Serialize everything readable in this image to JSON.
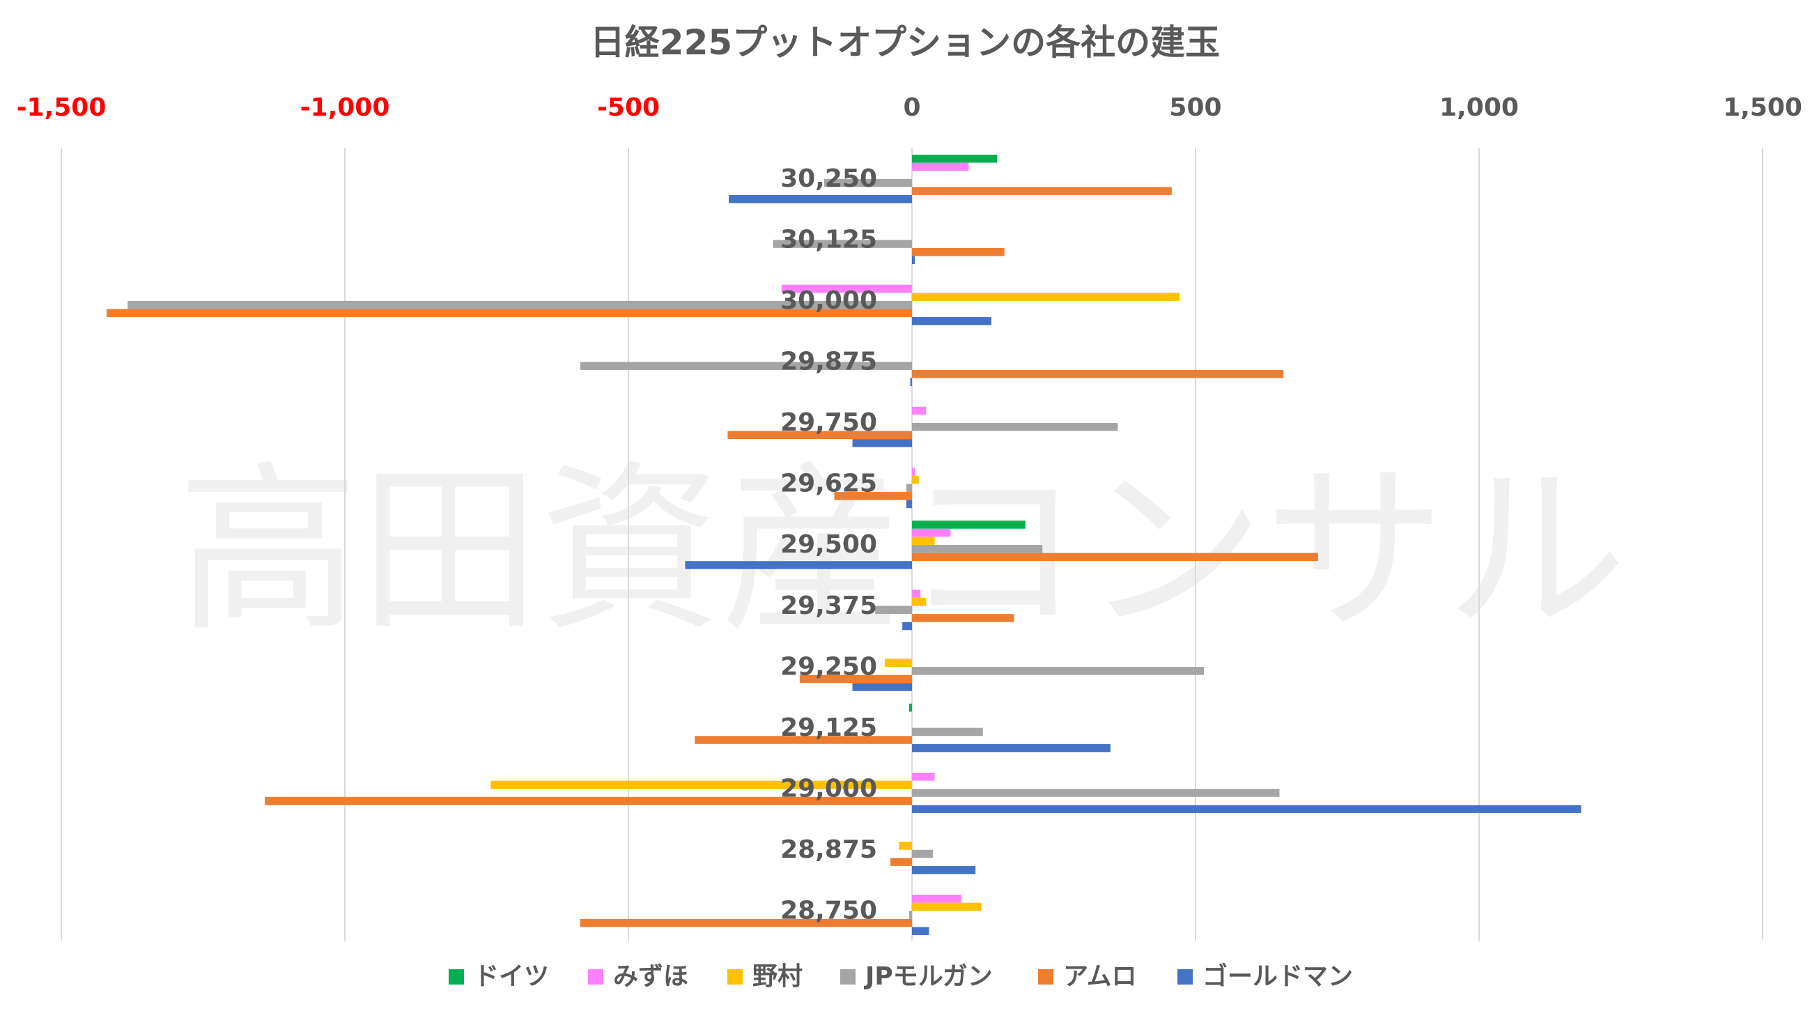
{
  "chart_data": {
    "type": "bar",
    "orientation": "horizontal",
    "title": "日経225プットオプションの各社の建玉",
    "watermark": "高田資産コンサル",
    "categories": [
      "30,250",
      "30,125",
      "30,000",
      "29,875",
      "29,750",
      "29,625",
      "29,500",
      "29,375",
      "29,250",
      "29,125",
      "29,000",
      "28,875",
      "28,750"
    ],
    "xlim": [
      -1500,
      1500
    ],
    "xticks": [
      {
        "value": -1500,
        "label": "-1,500",
        "negative": true
      },
      {
        "value": -1000,
        "label": "-1,000",
        "negative": true
      },
      {
        "value": -500,
        "label": "-500",
        "negative": true
      },
      {
        "value": 0,
        "label": "0",
        "negative": false
      },
      {
        "value": 500,
        "label": "500",
        "negative": false
      },
      {
        "value": 1000,
        "label": "1,000",
        "negative": false
      },
      {
        "value": 1500,
        "label": "1,500",
        "negative": false
      }
    ],
    "axis_position": "top",
    "grid": "vertical",
    "legend_position": "bottom",
    "negative_tick_color": "#ff0000",
    "positive_tick_color": "#595959",
    "series": [
      {
        "name": "ドイツ",
        "color": "#00b050",
        "values": [
          150,
          0,
          0,
          0,
          0,
          0,
          200,
          0,
          0,
          -5,
          0,
          0,
          0
        ]
      },
      {
        "name": "みずほ",
        "color": "#ff80ff",
        "values": [
          100,
          0,
          -230,
          0,
          25,
          5,
          68,
          15,
          0,
          0,
          40,
          0,
          87
        ]
      },
      {
        "name": "野村",
        "color": "#ffc000",
        "values": [
          0,
          0,
          472,
          0,
          0,
          12,
          40,
          25,
          -48,
          0,
          -743,
          -23,
          122
        ]
      },
      {
        "name": "JPモルガン",
        "color": "#a5a5a5",
        "values": [
          -155,
          -245,
          -1383,
          -585,
          363,
          -10,
          230,
          -65,
          515,
          125,
          648,
          37,
          -5
        ]
      },
      {
        "name": "アムロ",
        "color": "#ed7d31",
        "values": [
          458,
          163,
          -1420,
          655,
          -325,
          -137,
          716,
          180,
          -198,
          -383,
          -1141,
          -38,
          -585
        ]
      },
      {
        "name": "ゴールドマン",
        "color": "#4472c4",
        "values": [
          -323,
          5,
          140,
          -3,
          -105,
          -10,
          -400,
          -17,
          -105,
          350,
          1180,
          112,
          30
        ]
      }
    ]
  }
}
